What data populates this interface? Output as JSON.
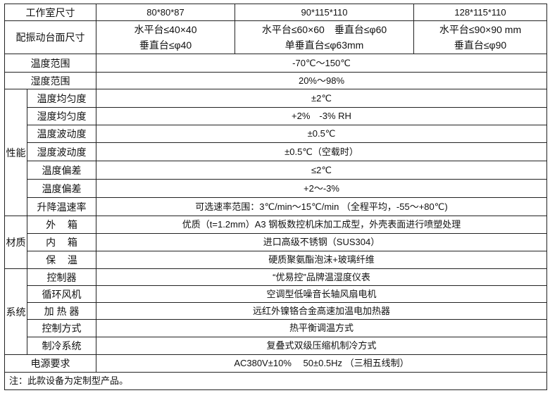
{
  "header": {
    "label": "工作室尺寸",
    "values": [
      "80*80*87",
      "90*115*110",
      "128*115*110"
    ]
  },
  "platform": {
    "label": "配振动台面尺寸",
    "values": [
      [
        "水平台≤40×40",
        "垂直台≤φ40"
      ],
      [
        "水平台≤60×60　垂直台≤φ60",
        "单垂直台≤φ63mm"
      ],
      [
        "水平台≤90×90 mm",
        "垂直台≤φ90"
      ]
    ]
  },
  "temp_range": {
    "label": "温度范围",
    "value": "-70℃～150℃"
  },
  "humidity_range": {
    "label": "湿度范围",
    "value": "20%～98%"
  },
  "performance": {
    "group": "性能",
    "rows": [
      {
        "label": "温度均匀度",
        "value": "±2℃"
      },
      {
        "label": "湿度均匀度",
        "value": "+2%　-3% RH"
      },
      {
        "label": "温度波动度",
        "value": "±0.5℃"
      },
      {
        "label": "湿度波动度",
        "value": "±0.5℃（空载时）"
      },
      {
        "label": "温度偏差",
        "value": "≤2℃"
      },
      {
        "label": "温度偏差",
        "value": "+2～-3%"
      },
      {
        "label": "升降温速率",
        "value": "可选速率范围：3℃/min～15℃/min （全程平均，-55～+80℃)"
      }
    ]
  },
  "material": {
    "group": "材质",
    "rows": [
      {
        "label": "外箱",
        "value": "优质（t=1.2mm）A3 钢板数控机床加工成型，外壳表面进行喷塑处理"
      },
      {
        "label": "内箱",
        "value": "进口高级不锈钢（SUS304）"
      },
      {
        "label": "保温",
        "value": "硬质聚氨酯泡沫+玻璃纤维"
      }
    ]
  },
  "system": {
    "group": "系统",
    "rows": [
      {
        "label": "控制器",
        "value": "“优易控”品牌温湿度仪表"
      },
      {
        "label": "循环风机",
        "value": "空调型低噪音长轴风扇电机"
      },
      {
        "label": "加 热 器",
        "value": "远红外镍铬合金高速加温电加热器"
      },
      {
        "label": "控制方式",
        "value": "热平衡调温方式"
      },
      {
        "label": "制冷系统",
        "value": "复叠式双级压缩机制冷方式"
      }
    ]
  },
  "power": {
    "label": "电源要求",
    "value": "AC380V±10%　 50±0.5Hz （三相五线制）"
  },
  "note": "注：此款设备为定制型产品。"
}
